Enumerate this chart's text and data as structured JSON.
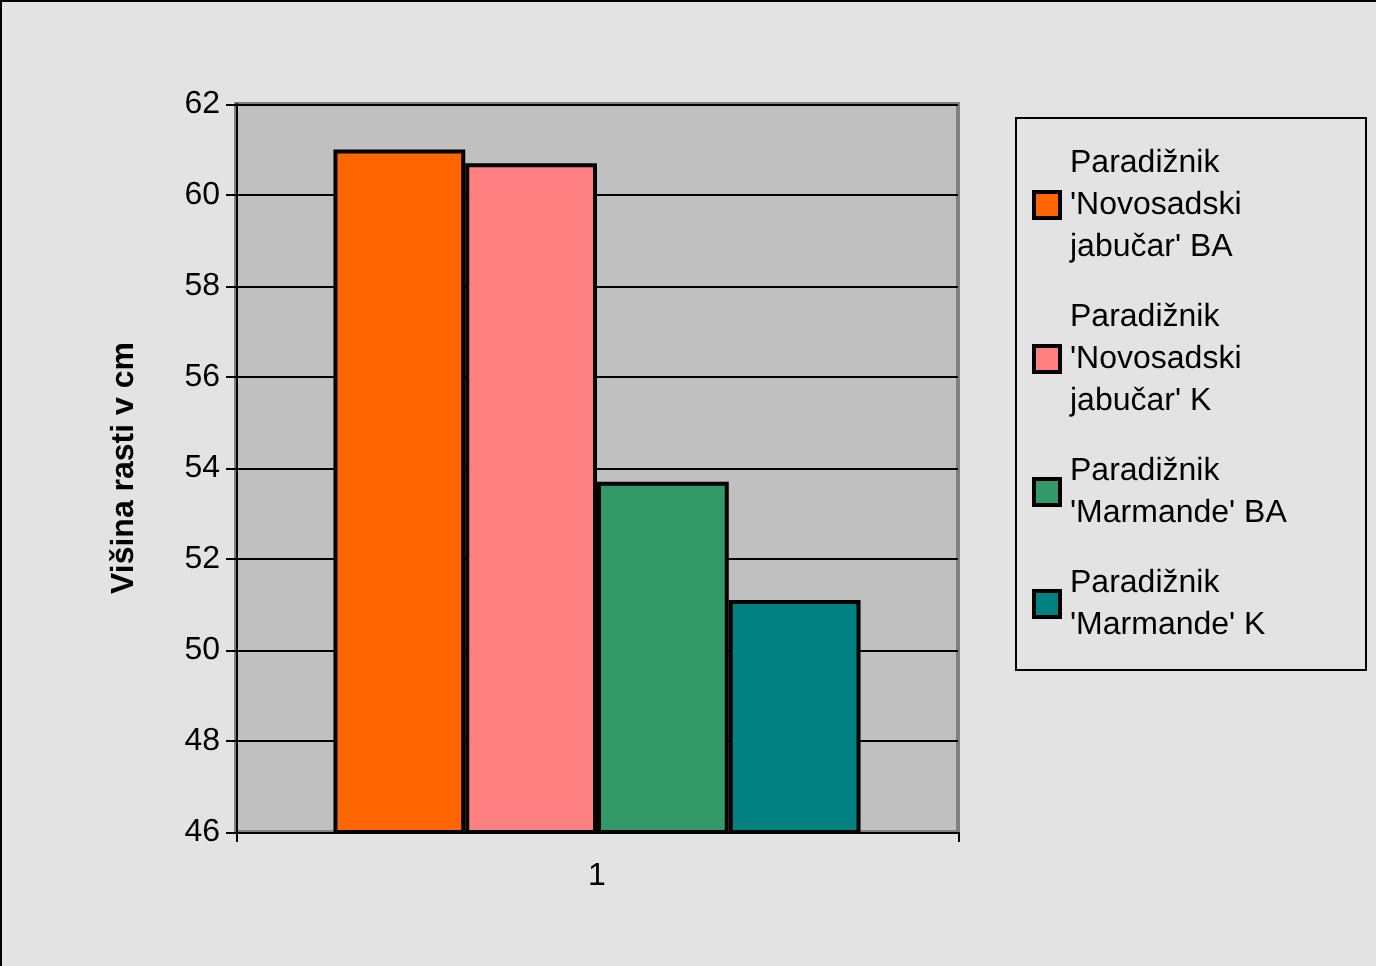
{
  "chart_data": {
    "type": "bar",
    "ylabel": "Višina rasti v cm",
    "categories": [
      "1"
    ],
    "series": [
      {
        "name": "Paradižnik 'Novosadski jabučar' BA",
        "color": "#ff6600",
        "values": [
          61.0
        ]
      },
      {
        "name": "Paradižnik 'Novosadski jabučar' K",
        "color": "#ff8080",
        "values": [
          60.7
        ]
      },
      {
        "name": "Paradižnik 'Marmande' BA",
        "color": "#339966",
        "values": [
          53.7
        ]
      },
      {
        "name": "Paradižnik 'Marmande' K",
        "color": "#008080",
        "values": [
          51.1
        ]
      }
    ],
    "ylim": [
      46,
      62
    ],
    "yticks": [
      46,
      48,
      50,
      52,
      54,
      56,
      58,
      60,
      62
    ],
    "grid": "y",
    "legend": "right"
  }
}
